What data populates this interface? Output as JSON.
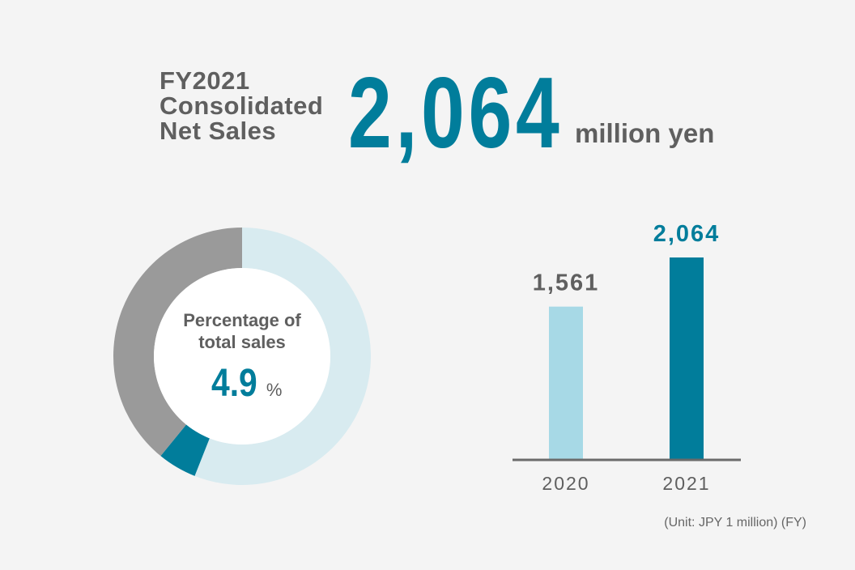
{
  "headline": {
    "label_lines": [
      "FY2021",
      "Consolidated",
      "Net Sales"
    ],
    "value": "2,064",
    "unit": "million yen"
  },
  "donut": {
    "label_lines": [
      "Percentage of",
      "total sales"
    ],
    "percentage_value": "4.9",
    "percentage_unit": "%"
  },
  "footnote": "(Unit: JPY 1 million)  (FY)",
  "colors": {
    "accent": "#017d9b",
    "light_bar": "#a7d9e6",
    "donut_light": "#d8ebf0",
    "donut_gray": "#9a9a9a",
    "axis": "#6b6b6b",
    "text_gray": "#5f5f5f"
  },
  "chart_data": [
    {
      "type": "pie",
      "variant": "donut",
      "slices": [
        {
          "value": 56.0,
          "color": "#d8ebf0"
        },
        {
          "value": 4.9,
          "color": "#017d9b"
        },
        {
          "value": 39.1,
          "color": "#9a9a9a"
        }
      ]
    },
    {
      "type": "bar",
      "categories": [
        "2020",
        "2021"
      ],
      "values": [
        1561,
        2064
      ],
      "value_labels": [
        "1,561",
        "2,064"
      ],
      "colors": [
        "#a7d9e6",
        "#017d9b"
      ],
      "label_colors": [
        "#5f5f5f",
        "#017d9b"
      ],
      "ylim": [
        0,
        2064
      ],
      "grid": false
    }
  ]
}
